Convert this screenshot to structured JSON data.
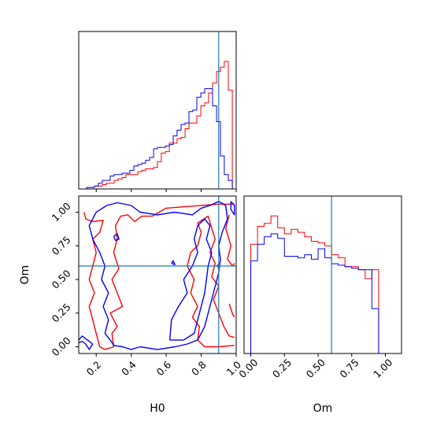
{
  "chart_data": [
    {
      "panel": "H0 marginal",
      "type": "histogram",
      "x_range": [
        0.1,
        1.0
      ],
      "bin_edges": [
        0.1,
        0.122,
        0.145,
        0.168,
        0.19,
        0.212,
        0.235,
        0.258,
        0.28,
        0.302,
        0.325,
        0.348,
        0.37,
        0.392,
        0.415,
        0.438,
        0.46,
        0.482,
        0.505,
        0.528,
        0.55,
        0.572,
        0.595,
        0.618,
        0.64,
        0.662,
        0.685,
        0.708,
        0.73,
        0.752,
        0.775,
        0.798,
        0.82,
        0.842,
        0.865,
        0.888,
        0.91,
        0.932,
        0.955,
        0.978,
        1.0
      ],
      "series": [
        {
          "color": "#ff0000",
          "counts": [
            0.0,
            0.0,
            0.01,
            0.01,
            0.02,
            0.02,
            0.03,
            0.04,
            0.04,
            0.06,
            0.07,
            0.08,
            0.1,
            0.1,
            0.1,
            0.12,
            0.13,
            0.14,
            0.14,
            0.15,
            0.19,
            0.25,
            0.26,
            0.32,
            0.32,
            0.35,
            0.36,
            0.42,
            0.46,
            0.46,
            0.51,
            0.58,
            0.6,
            0.67,
            0.74,
            0.82,
            0.85,
            0.89,
            0.69,
            0.0
          ]
        },
        {
          "color": "#0000ff",
          "counts": [
            0.0,
            0.0,
            0.01,
            0.01,
            0.02,
            0.04,
            0.06,
            0.06,
            0.09,
            0.1,
            0.1,
            0.11,
            0.11,
            0.13,
            0.16,
            0.17,
            0.18,
            0.2,
            0.22,
            0.28,
            0.29,
            0.29,
            0.3,
            0.31,
            0.37,
            0.41,
            0.45,
            0.46,
            0.54,
            0.55,
            0.64,
            0.67,
            0.7,
            0.7,
            0.58,
            0.47,
            0.23,
            0.1,
            0.06,
            0.0
          ]
        }
      ],
      "truth_x": 0.9,
      "xlabel": ""
    },
    {
      "panel": "H0 vs Om",
      "type": "contour",
      "x_range": [
        0.1,
        1.0
      ],
      "y_range": [
        -0.05,
        1.12
      ],
      "xticks": [
        "0.2",
        "0.4",
        "0.6",
        "0.8",
        "1.0"
      ],
      "yticks": [
        "0.00",
        "0.25",
        "0.50",
        "0.75",
        "1.00"
      ],
      "xlabel": "H0",
      "ylabel": "Om",
      "truth_x": 0.9,
      "truth_y": 0.6,
      "series": [
        {
          "color": "#ff0000",
          "contours": [
            [
              [
                0.13,
                1.0
              ],
              [
                0.14,
                0.95
              ],
              [
                0.18,
                0.93
              ],
              [
                0.24,
                0.94
              ],
              [
                0.22,
                0.85
              ],
              [
                0.18,
                0.8
              ],
              [
                0.2,
                0.7
              ],
              [
                0.18,
                0.6
              ],
              [
                0.16,
                0.5
              ],
              [
                0.19,
                0.4
              ],
              [
                0.16,
                0.3
              ],
              [
                0.18,
                0.2
              ],
              [
                0.2,
                0.1
              ],
              [
                0.22,
                0.0
              ],
              [
                0.25,
                -0.02
              ],
              [
                0.3,
                0.0
              ],
              [
                0.29,
                0.1
              ],
              [
                0.32,
                0.15
              ],
              [
                0.28,
                0.25
              ],
              [
                0.35,
                0.3
              ],
              [
                0.32,
                0.4
              ],
              [
                0.29,
                0.5
              ],
              [
                0.33,
                0.58
              ],
              [
                0.3,
                0.7
              ],
              [
                0.32,
                0.8
              ],
              [
                0.31,
                0.9
              ],
              [
                0.34,
                0.97
              ],
              [
                0.38,
                0.98
              ],
              [
                0.42,
                0.93
              ],
              [
                0.46,
                0.97
              ],
              [
                0.52,
                0.97
              ],
              [
                0.6,
                1.03
              ],
              [
                0.7,
                1.04
              ],
              [
                0.8,
                1.05
              ],
              [
                0.9,
                1.06
              ],
              [
                0.99,
                1.06
              ]
            ],
            [
              [
                0.99,
                0.01
              ],
              [
                0.9,
                0.0
              ],
              [
                0.82,
                0.0
              ],
              [
                0.78,
                0.05
              ],
              [
                0.79,
                0.15
              ],
              [
                0.75,
                0.22
              ],
              [
                0.78,
                0.3
              ],
              [
                0.74,
                0.4
              ],
              [
                0.76,
                0.5
              ],
              [
                0.72,
                0.6
              ],
              [
                0.74,
                0.7
              ],
              [
                0.78,
                0.75
              ],
              [
                0.8,
                0.85
              ],
              [
                0.78,
                0.92
              ],
              [
                0.84,
                0.97
              ],
              [
                0.86,
                0.88
              ],
              [
                0.88,
                0.8
              ],
              [
                0.85,
                0.7
              ],
              [
                0.88,
                0.62
              ],
              [
                0.86,
                0.52
              ],
              [
                0.9,
                0.45
              ],
              [
                0.87,
                0.35
              ],
              [
                0.9,
                0.25
              ],
              [
                0.93,
                0.15
              ],
              [
                0.96,
                0.08
              ],
              [
                0.99,
                0.07
              ]
            ],
            [
              [
                0.96,
                0.98
              ],
              [
                0.94,
                0.88
              ],
              [
                0.97,
                0.75
              ],
              [
                0.95,
                0.65
              ],
              [
                0.98,
                0.6
              ],
              [
                0.99,
                0.62
              ]
            ],
            [
              [
                0.96,
                0.32
              ],
              [
                0.98,
                0.24
              ],
              [
                0.99,
                0.22
              ]
            ]
          ]
        },
        {
          "color": "#0000ff",
          "contours": [
            [
              [
                0.1,
                0.05
              ],
              [
                0.12,
                0.08
              ],
              [
                0.15,
                0.05
              ],
              [
                0.18,
                0.02
              ],
              [
                0.16,
                -0.02
              ],
              [
                0.14,
                0.02
              ],
              [
                0.12,
                0.04
              ],
              [
                0.1,
                0.03
              ]
            ],
            [
              [
                0.45,
                0.0
              ],
              [
                0.4,
                -0.02
              ],
              [
                0.35,
                0.0
              ],
              [
                0.3,
                0.01
              ],
              [
                0.28,
                0.05
              ],
              [
                0.25,
                0.1
              ],
              [
                0.27,
                0.2
              ],
              [
                0.24,
                0.3
              ],
              [
                0.27,
                0.4
              ],
              [
                0.23,
                0.5
              ],
              [
                0.25,
                0.6
              ],
              [
                0.22,
                0.7
              ],
              [
                0.18,
                0.8
              ],
              [
                0.16,
                0.9
              ],
              [
                0.2,
                1.0
              ],
              [
                0.26,
                1.05
              ],
              [
                0.32,
                1.07
              ],
              [
                0.4,
                1.05
              ],
              [
                0.45,
                1.0
              ],
              [
                0.55,
                0.98
              ],
              [
                0.65,
                1.0
              ],
              [
                0.75,
                0.98
              ],
              [
                0.8,
                1.03
              ],
              [
                0.85,
                1.05
              ],
              [
                0.9,
                1.08
              ],
              [
                0.94,
                1.05
              ],
              [
                0.95,
                0.95
              ],
              [
                0.92,
                0.85
              ],
              [
                0.9,
                0.75
              ],
              [
                0.91,
                0.65
              ],
              [
                0.9,
                0.55
              ],
              [
                0.88,
                0.45
              ],
              [
                0.86,
                0.35
              ],
              [
                0.84,
                0.25
              ],
              [
                0.82,
                0.15
              ],
              [
                0.78,
                0.05
              ],
              [
                0.72,
                0.02
              ],
              [
                0.65,
                0.0
              ],
              [
                0.55,
                -0.02
              ],
              [
                0.45,
                0.0
              ]
            ],
            [
              [
                0.62,
                0.05
              ],
              [
                0.63,
                0.2
              ],
              [
                0.67,
                0.3
              ],
              [
                0.72,
                0.4
              ],
              [
                0.7,
                0.5
              ],
              [
                0.75,
                0.6
              ],
              [
                0.78,
                0.7
              ],
              [
                0.76,
                0.8
              ],
              [
                0.78,
                0.9
              ],
              [
                0.82,
                0.95
              ],
              [
                0.85,
                0.9
              ],
              [
                0.83,
                0.8
              ],
              [
                0.86,
                0.7
              ],
              [
                0.84,
                0.6
              ],
              [
                0.83,
                0.5
              ],
              [
                0.82,
                0.4
              ],
              [
                0.8,
                0.3
              ],
              [
                0.78,
                0.2
              ],
              [
                0.76,
                0.1
              ],
              [
                0.7,
                0.05
              ],
              [
                0.62,
                0.05
              ]
            ],
            [
              [
                0.3,
                0.82
              ],
              [
                0.32,
                0.84
              ],
              [
                0.33,
                0.8
              ],
              [
                0.31,
                0.79
              ],
              [
                0.3,
                0.82
              ]
            ],
            [
              [
                0.63,
                0.62
              ],
              [
                0.64,
                0.64
              ],
              [
                0.65,
                0.61
              ],
              [
                0.63,
                0.62
              ]
            ],
            [
              [
                0.97,
                1.08
              ],
              [
                0.99,
                1.05
              ],
              [
                0.99,
                0.98
              ],
              [
                0.97,
                1.02
              ],
              [
                0.97,
                1.08
              ]
            ]
          ]
        }
      ]
    },
    {
      "panel": "Om marginal",
      "type": "histogram",
      "x_range": [
        -0.05,
        1.12
      ],
      "xticks": [
        "0.00",
        "0.25",
        "0.50",
        "0.75",
        "1.00"
      ],
      "xlabel": "Om",
      "bin_edges": [
        -0.05,
        0.0,
        0.05,
        0.1,
        0.15,
        0.2,
        0.25,
        0.3,
        0.35,
        0.4,
        0.45,
        0.5,
        0.55,
        0.6,
        0.65,
        0.7,
        0.75,
        0.8,
        0.85,
        0.9,
        0.95,
        1.0,
        1.05,
        1.12
      ],
      "series": [
        {
          "color": "#ff0000",
          "counts": [
            0.0,
            0.73,
            0.85,
            0.87,
            0.92,
            0.84,
            0.8,
            0.83,
            0.81,
            0.78,
            0.75,
            0.74,
            0.72,
            0.66,
            0.64,
            0.58,
            0.58,
            0.56,
            0.5,
            0.56,
            0.0,
            0.0,
            0.0
          ]
        },
        {
          "color": "#0000ff",
          "counts": [
            0.0,
            0.62,
            0.73,
            0.78,
            0.8,
            0.77,
            0.65,
            0.65,
            0.64,
            0.66,
            0.63,
            0.7,
            0.64,
            0.6,
            0.59,
            0.58,
            0.57,
            0.56,
            0.56,
            0.3,
            0.0,
            0.0,
            0.0
          ]
        }
      ],
      "truth_x": 0.6
    }
  ]
}
